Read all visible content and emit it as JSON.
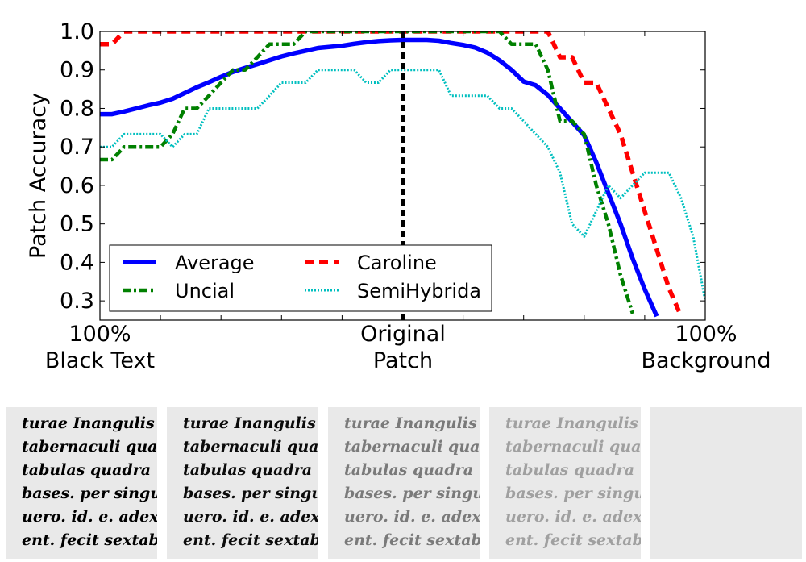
{
  "chart_data": {
    "type": "line",
    "xlabel": "",
    "ylabel": "Patch Accuracy",
    "ylim": [
      0.25,
      1.0
    ],
    "x_tick_labels": [
      [
        "100%",
        "Black Text"
      ],
      [
        "Original",
        "Patch"
      ],
      [
        "100%",
        "Background"
      ]
    ],
    "y_ticks": [
      "0.3",
      "0.4",
      "0.5",
      "0.6",
      "0.7",
      "0.8",
      "0.9",
      "1.0"
    ],
    "reference_line": {
      "x": 0,
      "style": "dashed",
      "color": "#000000"
    },
    "legend": {
      "placement": "lower-left",
      "entries": [
        "Average",
        "Caroline",
        "Uncial",
        "SemiHybrida"
      ]
    },
    "x": [
      -100,
      -96,
      -92,
      -88,
      -84,
      -80,
      -76,
      -72,
      -68,
      -64,
      -60,
      -56,
      -52,
      -48,
      -44,
      -40,
      -36,
      -32,
      -28,
      -24,
      -20,
      -16,
      -12,
      -8,
      -4,
      0,
      4,
      8,
      12,
      16,
      20,
      24,
      28,
      32,
      36,
      40,
      44,
      48,
      52,
      56,
      60,
      64,
      68,
      72,
      76,
      80,
      84,
      88,
      92,
      96,
      100
    ],
    "series": [
      {
        "name": "Average",
        "color": "#0000ff",
        "style": "solid",
        "values": [
          0.785,
          0.785,
          0.792,
          0.8,
          0.808,
          0.815,
          0.825,
          0.84,
          0.855,
          0.868,
          0.882,
          0.895,
          0.905,
          0.915,
          0.925,
          0.935,
          0.943,
          0.95,
          0.957,
          0.96,
          0.963,
          0.968,
          0.972,
          0.975,
          0.977,
          0.978,
          0.978,
          0.978,
          0.976,
          0.97,
          0.965,
          0.958,
          0.945,
          0.925,
          0.9,
          0.87,
          0.86,
          0.835,
          0.8,
          0.765,
          0.73,
          0.66,
          0.58,
          0.5,
          0.41,
          0.33,
          0.26,
          null,
          null,
          null,
          null
        ]
      },
      {
        "name": "Caroline",
        "color": "#ff0000",
        "style": "dashed",
        "values": [
          0.967,
          0.967,
          1.0,
          1.0,
          1.0,
          1.0,
          1.0,
          1.0,
          1.0,
          1.0,
          1.0,
          1.0,
          1.0,
          1.0,
          1.0,
          1.0,
          1.0,
          1.0,
          1.0,
          1.0,
          1.0,
          1.0,
          1.0,
          1.0,
          1.0,
          1.0,
          1.0,
          1.0,
          1.0,
          1.0,
          1.0,
          1.0,
          1.0,
          1.0,
          1.0,
          1.0,
          1.0,
          1.0,
          0.933,
          0.933,
          0.867,
          0.867,
          0.8,
          0.733,
          0.633,
          0.533,
          0.433,
          0.333,
          0.26,
          null,
          null
        ]
      },
      {
        "name": "Uncial",
        "color": "#008000",
        "style": "dashdot",
        "values": [
          0.667,
          0.667,
          0.7,
          0.7,
          0.7,
          0.7,
          0.733,
          0.8,
          0.8,
          0.833,
          0.867,
          0.9,
          0.9,
          0.933,
          0.967,
          0.967,
          0.967,
          1.0,
          1.0,
          1.0,
          1.0,
          1.0,
          1.0,
          1.0,
          1.0,
          1.0,
          1.0,
          1.0,
          1.0,
          1.0,
          1.0,
          1.0,
          1.0,
          1.0,
          0.967,
          0.967,
          0.967,
          0.9,
          0.767,
          0.767,
          0.733,
          0.6,
          0.5,
          0.367,
          0.267,
          null,
          null,
          null,
          null,
          null,
          null
        ]
      },
      {
        "name": "SemiHybrida",
        "color": "#00bfbf",
        "style": "dotted",
        "values": [
          0.7,
          0.7,
          0.733,
          0.733,
          0.733,
          0.733,
          0.7,
          0.733,
          0.733,
          0.8,
          0.8,
          0.8,
          0.8,
          0.8,
          0.833,
          0.867,
          0.867,
          0.867,
          0.9,
          0.9,
          0.9,
          0.9,
          0.867,
          0.867,
          0.9,
          0.9,
          0.9,
          0.9,
          0.9,
          0.833,
          0.833,
          0.833,
          0.833,
          0.8,
          0.8,
          0.767,
          0.733,
          0.7,
          0.633,
          0.5,
          0.467,
          0.533,
          0.6,
          0.567,
          0.6,
          0.633,
          0.633,
          0.633,
          0.567,
          0.467,
          0.3
        ]
      }
    ]
  },
  "patches": {
    "text_lines": [
      "turae Inangulis",
      "tabernaculi quae",
      "tabulas quadra",
      "bases. per singulas",
      "uero. id. e. adex pa",
      "ent. fecit sextabul"
    ],
    "ink_levels": [
      0.0,
      0.05,
      0.55,
      0.72,
      1.0
    ]
  },
  "colors": {
    "page_background": "#ffffff",
    "patch_background": "#e9e9e9",
    "ink": "#000000"
  }
}
